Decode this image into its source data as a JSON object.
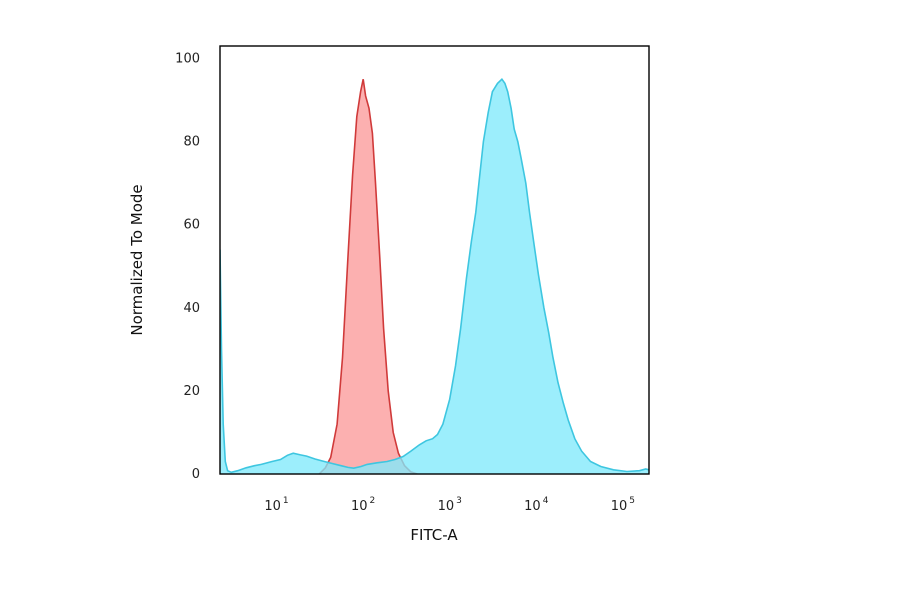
{
  "chart_data": {
    "type": "area",
    "title": "",
    "xlabel": "FITC-A",
    "ylabel": "Normalized To Mode",
    "x_scale": "log",
    "xlim": [
      2.0,
      180000
    ],
    "ylim": [
      0,
      103
    ],
    "grid": false,
    "legend": "none",
    "y_ticks": [
      {
        "value": 0,
        "label": "0"
      },
      {
        "value": 20,
        "label": "20"
      },
      {
        "value": 40,
        "label": "40"
      },
      {
        "value": 60,
        "label": "60"
      },
      {
        "value": 80,
        "label": "80"
      },
      {
        "value": 100,
        "label": "100"
      }
    ],
    "x_ticks": [
      {
        "value": 10,
        "base": "10",
        "exp": "1"
      },
      {
        "value": 100,
        "base": "10",
        "exp": "2"
      },
      {
        "value": 1000,
        "base": "10",
        "exp": "3"
      },
      {
        "value": 10000,
        "base": "10",
        "exp": "4"
      },
      {
        "value": 100000,
        "base": "10",
        "exp": "5"
      }
    ],
    "series": [
      {
        "color_fill": "#fb9a9a",
        "color_line": "#d03a3a",
        "points": [
          [
            28,
            0
          ],
          [
            33,
            1.5
          ],
          [
            38,
            4
          ],
          [
            45,
            12
          ],
          [
            52,
            28
          ],
          [
            60,
            52
          ],
          [
            68,
            72
          ],
          [
            76,
            86
          ],
          [
            84,
            92
          ],
          [
            90,
            95
          ],
          [
            96,
            91
          ],
          [
            105,
            88
          ],
          [
            115,
            82
          ],
          [
            125,
            70
          ],
          [
            140,
            52
          ],
          [
            155,
            35
          ],
          [
            175,
            20
          ],
          [
            200,
            10
          ],
          [
            230,
            5
          ],
          [
            270,
            2
          ],
          [
            320,
            0.5
          ],
          [
            380,
            0
          ]
        ]
      },
      {
        "color_fill": "#80e9fb",
        "color_line": "#3ec6e0",
        "points": [
          [
            2.0,
            54
          ],
          [
            2.08,
            30
          ],
          [
            2.18,
            12
          ],
          [
            2.3,
            3
          ],
          [
            2.45,
            0.8
          ],
          [
            2.7,
            0.4
          ],
          [
            3.2,
            0.8
          ],
          [
            4,
            1.5
          ],
          [
            5,
            2
          ],
          [
            6,
            2.3
          ],
          [
            8,
            3
          ],
          [
            10,
            3.5
          ],
          [
            12,
            4.5
          ],
          [
            14,
            5
          ],
          [
            17,
            4.6
          ],
          [
            20,
            4.3
          ],
          [
            25,
            3.6
          ],
          [
            32,
            3
          ],
          [
            40,
            2.5
          ],
          [
            50,
            2
          ],
          [
            60,
            1.6
          ],
          [
            70,
            1.4
          ],
          [
            85,
            1.8
          ],
          [
            100,
            2.3
          ],
          [
            130,
            2.7
          ],
          [
            170,
            3
          ],
          [
            210,
            3.5
          ],
          [
            260,
            4.2
          ],
          [
            320,
            5.5
          ],
          [
            400,
            7
          ],
          [
            480,
            8
          ],
          [
            570,
            8.5
          ],
          [
            650,
            9.5
          ],
          [
            750,
            12
          ],
          [
            900,
            18
          ],
          [
            1050,
            26
          ],
          [
            1200,
            35
          ],
          [
            1400,
            47
          ],
          [
            1600,
            56
          ],
          [
            1800,
            63
          ],
          [
            2000,
            72
          ],
          [
            2200,
            80
          ],
          [
            2500,
            87
          ],
          [
            2800,
            92
          ],
          [
            3200,
            94
          ],
          [
            3600,
            95
          ],
          [
            3900,
            94
          ],
          [
            4200,
            92
          ],
          [
            4600,
            88
          ],
          [
            5000,
            83
          ],
          [
            5500,
            80
          ],
          [
            6000,
            76
          ],
          [
            6800,
            70
          ],
          [
            7500,
            63
          ],
          [
            8500,
            55
          ],
          [
            9500,
            48
          ],
          [
            11000,
            40
          ],
          [
            12500,
            34
          ],
          [
            14000,
            28
          ],
          [
            16000,
            22
          ],
          [
            18500,
            17
          ],
          [
            21000,
            13
          ],
          [
            25000,
            8.5
          ],
          [
            30000,
            5.5
          ],
          [
            38000,
            3
          ],
          [
            50000,
            1.8
          ],
          [
            70000,
            1
          ],
          [
            100000,
            0.6
          ],
          [
            140000,
            0.8
          ],
          [
            165000,
            1.2
          ],
          [
            180000,
            1
          ]
        ]
      }
    ]
  }
}
